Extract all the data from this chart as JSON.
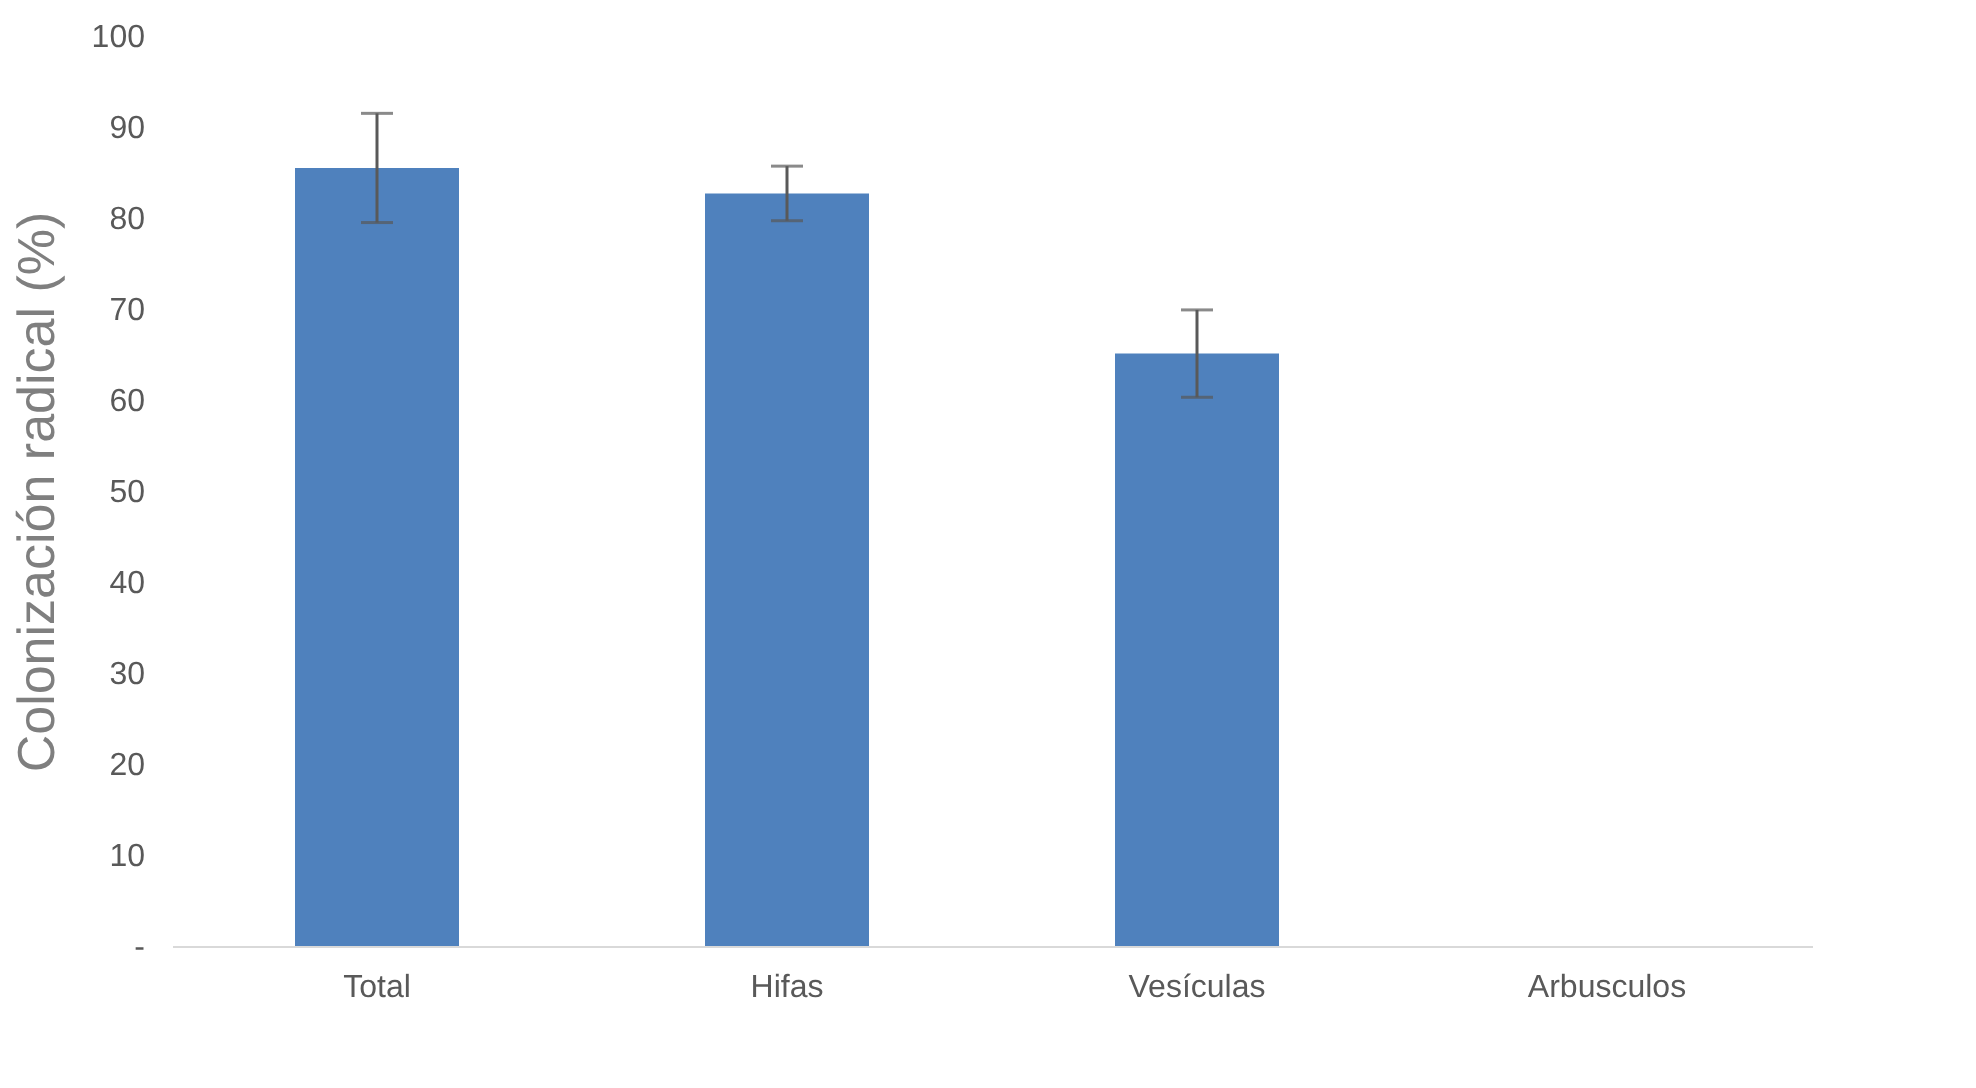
{
  "chart_data": {
    "type": "bar",
    "ylabel": "Colonización radical (%)",
    "categories": [
      "Total",
      "Hifas",
      "Vesículas",
      "Arbusculos"
    ],
    "values": [
      85.5,
      82.7,
      65.1,
      0
    ],
    "errors": [
      6,
      3,
      4.8,
      null
    ],
    "color": "#4f81bd",
    "ylim": [
      0,
      100
    ],
    "yticks": [
      {
        "value": 0,
        "label": "-"
      },
      10,
      20,
      30,
      40,
      50,
      60,
      70,
      80,
      90,
      100
    ],
    "grid": false
  }
}
